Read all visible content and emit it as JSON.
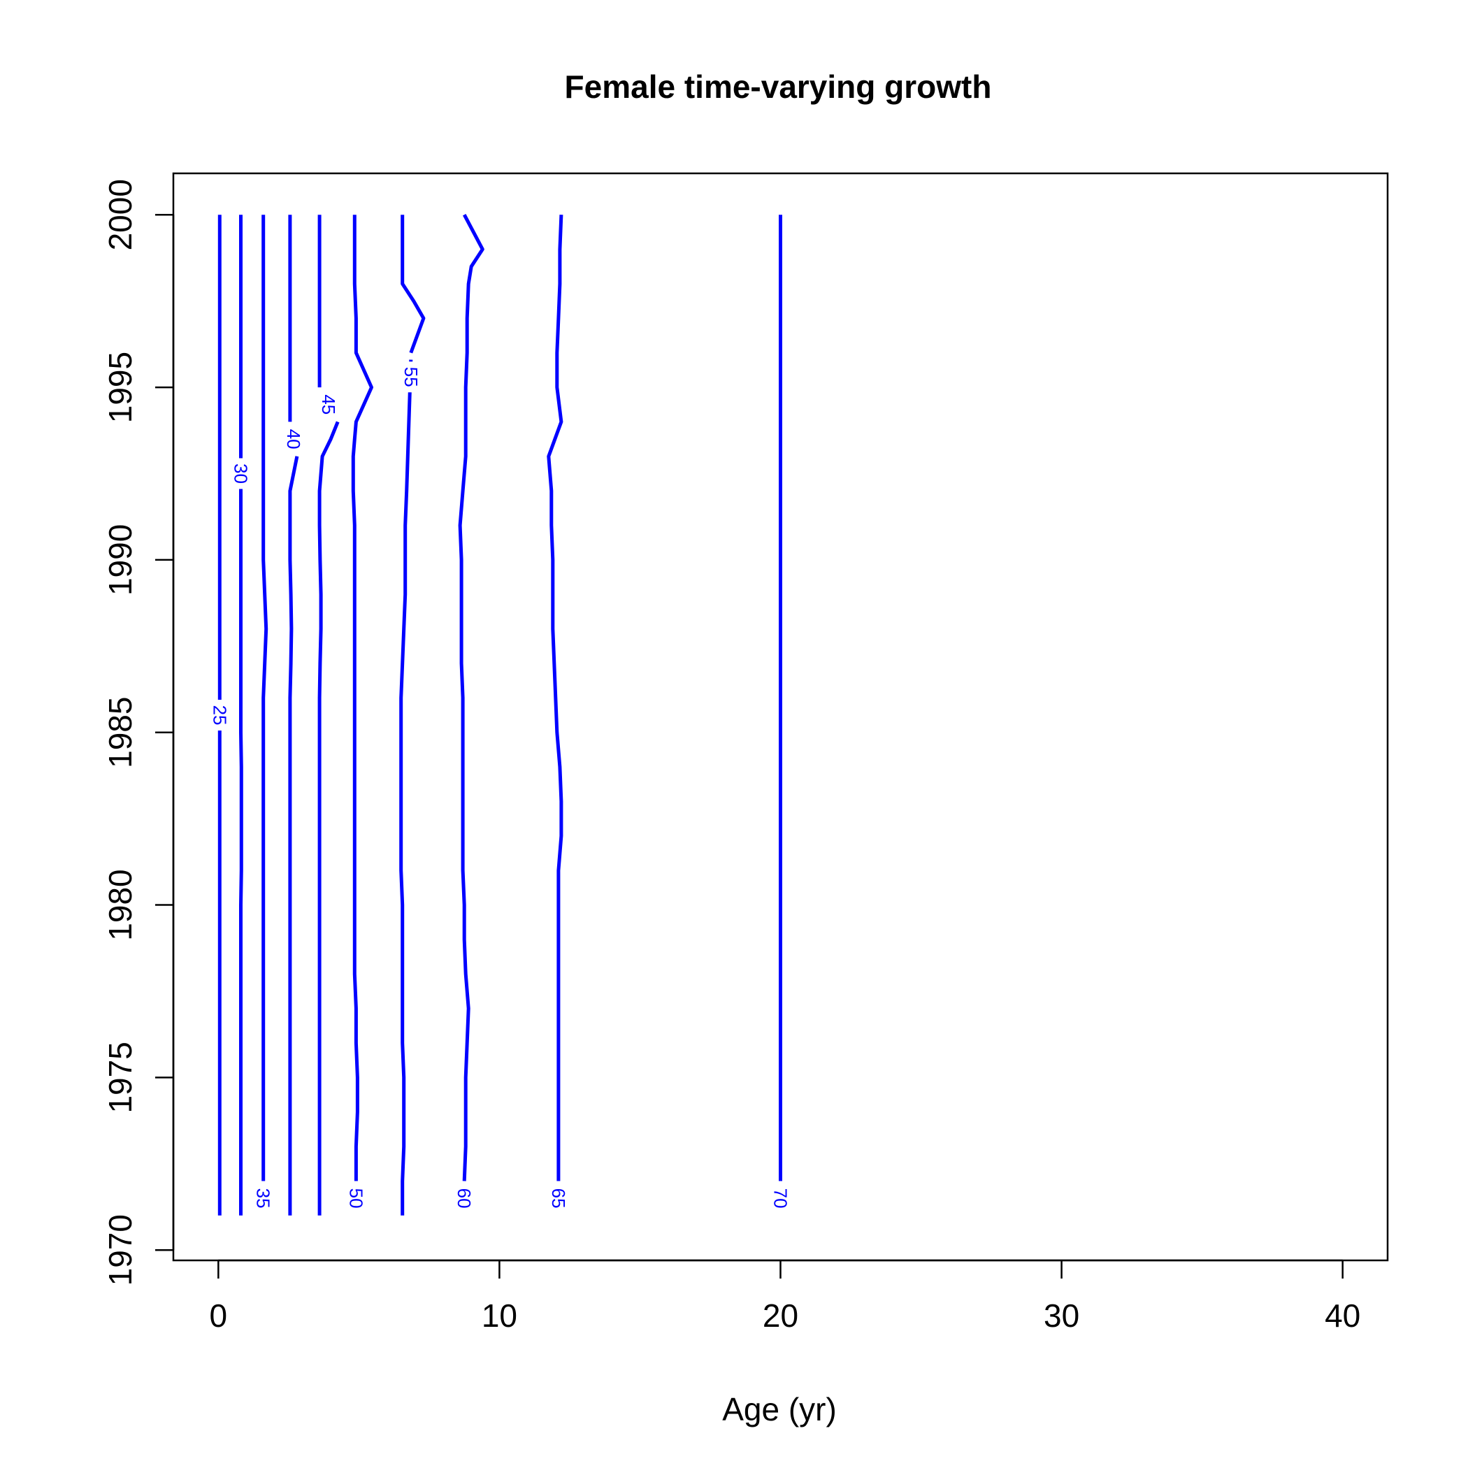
{
  "chart_data": {
    "type": "line",
    "title": "Female time-varying growth",
    "xlabel": "Age (yr)",
    "ylabel": "",
    "xlim": [
      -1.6,
      41.6
    ],
    "ylim": [
      1969.7,
      2001.2
    ],
    "xticks": [
      0,
      10,
      20,
      30,
      40
    ],
    "yticks": [
      1970,
      1975,
      1980,
      1985,
      1990,
      1995,
      2000
    ],
    "grid": false,
    "legend": "none",
    "line_color": "#0000ff",
    "series": [
      {
        "label": "25",
        "x": [
          0.05,
          0.05,
          0.05,
          0.05,
          0.05,
          0.05,
          0.05,
          0.05,
          0.05,
          0.05,
          0.05,
          0.05,
          0.05,
          0.05,
          0.05,
          0.05,
          0.05,
          0.05,
          0.05,
          0.05,
          0.05,
          0.05,
          0.05,
          0.05,
          0.05,
          0.05,
          0.05,
          0.05,
          0.05,
          0.05
        ],
        "y": [
          1971,
          1972,
          1973,
          1974,
          1975,
          1976,
          1977,
          1978,
          1979,
          1980,
          1981,
          1982,
          1983,
          1984,
          1985,
          1986,
          1987,
          1988,
          1989,
          1990,
          1991,
          1992,
          1993,
          1994,
          1995,
          1996,
          1997,
          1998,
          1999,
          2000
        ],
        "label_y": 1985.5
      },
      {
        "label": "30",
        "x": [
          0.8,
          0.8,
          0.8,
          0.8,
          0.8,
          0.8,
          0.8,
          0.8,
          0.8,
          0.8,
          0.82,
          0.82,
          0.82,
          0.82,
          0.8,
          0.8,
          0.8,
          0.8,
          0.8,
          0.8,
          0.8,
          0.8,
          0.8,
          0.8,
          0.8,
          0.8,
          0.8,
          0.8,
          0.8,
          0.8
        ],
        "y": [
          1971,
          1972,
          1973,
          1974,
          1975,
          1976,
          1977,
          1978,
          1979,
          1980,
          1981,
          1982,
          1983,
          1984,
          1985,
          1986,
          1987,
          1988,
          1989,
          1990,
          1991,
          1992,
          1993,
          1994,
          1995,
          1996,
          1997,
          1998,
          1999,
          2000
        ],
        "label_y": 1992.5
      },
      {
        "label": "35",
        "x": [
          1.6,
          1.6,
          1.6,
          1.6,
          1.6,
          1.6,
          1.6,
          1.6,
          1.6,
          1.6,
          1.6,
          1.6,
          1.6,
          1.6,
          1.6,
          1.65,
          1.7,
          1.65,
          1.6,
          1.6,
          1.6,
          1.6,
          1.6,
          1.6,
          1.6,
          1.6,
          1.6,
          1.6,
          1.6,
          1.6
        ],
        "y": [
          1972,
          1973,
          1974,
          1975,
          1976,
          1977,
          1978,
          1979,
          1980,
          1981,
          1982,
          1983,
          1984,
          1985,
          1986,
          1987,
          1988,
          1989,
          1990,
          1991,
          1992,
          1993,
          1994,
          1995,
          1996,
          1997,
          1998,
          1999,
          2000,
          2000
        ],
        "label_y": 1971.5
      },
      {
        "label": "40",
        "x": [
          2.55,
          2.55,
          2.55,
          2.55,
          2.55,
          2.55,
          2.55,
          2.55,
          2.55,
          2.55,
          2.55,
          2.55,
          2.55,
          2.55,
          2.55,
          2.55,
          2.58,
          2.6,
          2.58,
          2.55,
          2.55,
          2.55,
          2.8
        ],
        "y": [
          1971,
          1972,
          1973,
          1974,
          1975,
          1976,
          1977,
          1978,
          1979,
          1980,
          1981,
          1982,
          1983,
          1984,
          1985,
          1986,
          1987,
          1988,
          1989,
          1990,
          1991,
          1992,
          1993
        ],
        "label_y": 1993.5,
        "top_x": [
          2.55,
          2.55,
          2.55,
          2.55,
          2.55,
          2.55
        ],
        "top_y": [
          1994,
          1995,
          1996,
          1997,
          1998,
          2000
        ]
      },
      {
        "label": "45",
        "x": [
          3.6,
          3.6,
          3.6,
          3.6,
          3.6,
          3.6,
          3.6,
          3.6,
          3.6,
          3.6,
          3.6,
          3.6,
          3.6,
          3.6,
          3.6,
          3.6,
          3.62,
          3.65,
          3.65,
          3.62,
          3.6,
          3.6,
          3.7,
          4.0,
          4.25
        ],
        "y": [
          1971,
          1972,
          1973,
          1974,
          1975,
          1976,
          1977,
          1978,
          1979,
          1980,
          1981,
          1982,
          1983,
          1984,
          1985,
          1986,
          1987,
          1988,
          1989,
          1990,
          1991,
          1992,
          1993,
          1993.5,
          1994
        ],
        "label_y": 1994.5,
        "top_x": [
          3.6,
          3.6,
          3.6,
          3.6,
          3.6,
          3.6
        ],
        "top_y": [
          1995,
          1996,
          1997,
          1998,
          1999,
          2000
        ]
      },
      {
        "label": "50",
        "x": [
          4.9,
          4.9,
          4.95,
          4.95,
          4.9,
          4.9,
          4.85,
          4.85,
          4.85,
          4.85,
          4.85,
          4.85,
          4.85,
          4.85,
          4.85,
          4.85,
          4.85,
          4.85,
          4.85,
          4.85,
          4.8,
          4.8,
          4.85,
          4.9,
          5.45,
          4.9,
          4.9,
          4.85,
          4.85,
          4.85
        ],
        "y": [
          1972,
          1973,
          1974,
          1975,
          1976,
          1977,
          1978,
          1979,
          1980,
          1981,
          1982,
          1983,
          1984,
          1985,
          1986,
          1987,
          1988,
          1989,
          1990,
          1991,
          1992,
          1993,
          1993.5,
          1994,
          1995,
          1996,
          1997,
          1998,
          1999,
          2000
        ],
        "label_y": 1971.5
      },
      {
        "label": "55",
        "x": [
          6.55,
          6.55,
          6.6,
          6.6,
          6.6,
          6.55,
          6.55,
          6.55,
          6.55,
          6.55,
          6.5,
          6.5,
          6.5,
          6.5,
          6.5,
          6.5,
          6.55,
          6.6,
          6.65,
          6.65,
          6.65,
          6.7,
          6.85
        ],
        "y": [
          1971,
          1972,
          1973,
          1974,
          1975,
          1976,
          1977,
          1978,
          1979,
          1980,
          1981,
          1982,
          1983,
          1984,
          1985,
          1986,
          1987,
          1988,
          1989,
          1990,
          1991,
          1992,
          1995.8
        ],
        "label_y": 1995.3,
        "top_x": [
          6.85,
          7.3,
          6.95,
          6.55,
          6.55,
          6.55
        ],
        "top_y": [
          1996,
          1997,
          1997.5,
          1998,
          1999,
          2000
        ]
      },
      {
        "label": "60",
        "x": [
          8.75,
          8.8,
          8.8,
          8.8,
          8.85,
          8.9,
          8.8,
          8.75,
          8.75,
          8.7,
          8.7,
          8.7,
          8.7,
          8.7,
          8.7,
          8.65,
          8.65,
          8.65,
          8.65,
          8.6,
          8.7,
          8.8,
          8.8,
          8.8,
          8.85,
          8.85,
          8.9,
          9.0,
          9.4,
          8.75
        ],
        "y": [
          1972,
          1973,
          1974,
          1975,
          1976,
          1977,
          1978,
          1979,
          1980,
          1981,
          1982,
          1983,
          1984,
          1985,
          1986,
          1987,
          1988,
          1989,
          1990,
          1991,
          1992,
          1993,
          1994,
          1995,
          1996,
          1997,
          1998,
          1998.5,
          1999,
          2000
        ],
        "label_y": 1971.5
      },
      {
        "label": "65",
        "x": [
          12.1,
          12.1,
          12.1,
          12.1,
          12.1,
          12.1,
          12.1,
          12.1,
          12.1,
          12.2,
          12.2,
          12.15,
          12.05,
          12.0,
          11.95,
          11.9,
          11.9,
          11.85,
          11.85,
          11.75,
          12.2,
          12.05,
          12.05,
          12.1,
          12.15,
          12.15,
          12.2
        ],
        "y": [
          1972,
          1973,
          1974,
          1975,
          1976,
          1977,
          1978,
          1979,
          1981,
          1982,
          1983,
          1984,
          1985,
          1986,
          1987,
          1988,
          1990,
          1991,
          1992,
          1993,
          1994,
          1995,
          1996,
          1997,
          1998,
          1999,
          2000
        ],
        "label_y": 1971.5
      },
      {
        "label": "70",
        "x": [
          20.0,
          20.0,
          20.0,
          20.0,
          20.0,
          20.0,
          20.0,
          20.0,
          20.0,
          20.0,
          20.0,
          20.0,
          20.0,
          20.0,
          20.0,
          20.0,
          20.0,
          20.0,
          20.0,
          20.0,
          20.0,
          20.0,
          20.0,
          20.0,
          20.0,
          20.0,
          20.0,
          20.0,
          20.0
        ],
        "y": [
          1972,
          1973,
          1974,
          1975,
          1976,
          1977,
          1978,
          1979,
          1980,
          1981,
          1982,
          1983,
          1984,
          1985,
          1986,
          1987,
          1988,
          1989,
          1990,
          1991,
          1992,
          1993,
          1994,
          1995,
          1996,
          1997,
          1998,
          1999,
          2000
        ],
        "label_y": 1971.5
      }
    ]
  }
}
